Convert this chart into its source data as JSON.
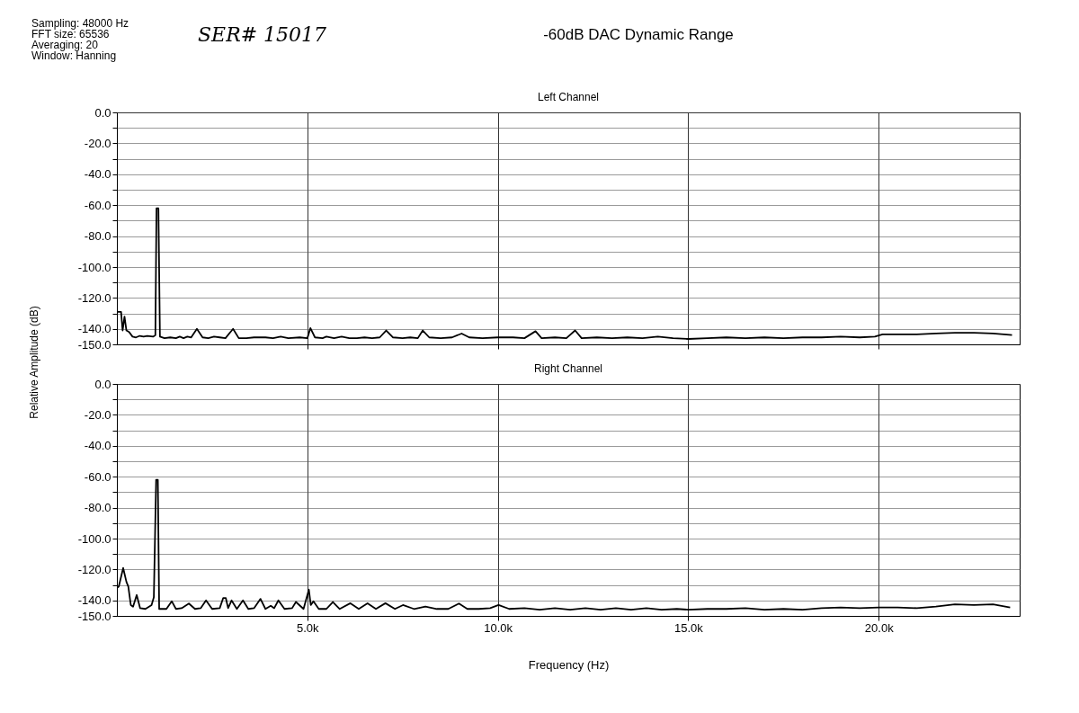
{
  "chart_data": [
    {
      "type": "line",
      "title": "Left Channel",
      "ylabel": "Relative Amplitude (dB)",
      "annotations": [
        "-60dB DAC Dynamic Range",
        "Sampling:  48000 Hz",
        "FFT size:  65536",
        "Averaging:  20",
        "Window:  Hanning",
        "SER# 15017"
      ],
      "xlim": [
        0,
        23700
      ],
      "ylim": [
        -150,
        0
      ],
      "xticks": [
        {
          "value": 5000,
          "label": null
        },
        {
          "value": 10000,
          "label": null
        },
        {
          "value": 15000,
          "label": null
        },
        {
          "value": 20000,
          "label": null
        }
      ],
      "yticks": [
        {
          "value": 0,
          "label": "0.0"
        },
        {
          "value": -10,
          "label": null
        },
        {
          "value": -20,
          "label": "-20.0"
        },
        {
          "value": -30,
          "label": null
        },
        {
          "value": -40,
          "label": "-40.0"
        },
        {
          "value": -50,
          "label": null
        },
        {
          "value": -60,
          "label": "-60.0"
        },
        {
          "value": -70,
          "label": null
        },
        {
          "value": -80,
          "label": "-80.0"
        },
        {
          "value": -90,
          "label": null
        },
        {
          "value": -100,
          "label": "-100.0"
        },
        {
          "value": -110,
          "label": null
        },
        {
          "value": -120,
          "label": "-120.0"
        },
        {
          "value": -130,
          "label": null
        },
        {
          "value": -140,
          "label": "-140.0"
        },
        {
          "value": -150,
          "label": "-150.0"
        }
      ],
      "grid": true,
      "tick_labels": "y",
      "series": [
        {
          "color": "#000000",
          "x": [
            0,
            110,
            150,
            200,
            250,
            320,
            410,
            500,
            600,
            700,
            800,
            950,
            1010,
            1040,
            1090,
            1130,
            1250,
            1400,
            1550,
            1650,
            1750,
            1850,
            1950,
            2100,
            2250,
            2400,
            2550,
            2700,
            2850,
            3050,
            3200,
            3400,
            3600,
            3900,
            4100,
            4300,
            4500,
            4800,
            5000,
            5080,
            5200,
            5400,
            5500,
            5700,
            5900,
            6100,
            6300,
            6500,
            6700,
            6900,
            7070,
            7250,
            7500,
            7700,
            7900,
            8030,
            8200,
            8500,
            8800,
            9050,
            9250,
            9600,
            10000,
            10400,
            10700,
            10990,
            11150,
            11500,
            11800,
            12030,
            12200,
            12600,
            13000,
            13400,
            13800,
            14200,
            14600,
            15000,
            15500,
            16000,
            16500,
            17000,
            17500,
            18000,
            18500,
            19000,
            19500,
            19900,
            20100,
            20500,
            21000,
            21500,
            22000,
            22500,
            23000,
            23500
          ],
          "values": [
            -129,
            -129,
            -141,
            -132,
            -141,
            -142,
            -145,
            -145.5,
            -144.5,
            -145,
            -144.5,
            -145,
            -144,
            -62,
            -62,
            -145,
            -146,
            -145.5,
            -146,
            -145,
            -146,
            -145,
            -145.5,
            -140,
            -145.5,
            -146,
            -145,
            -145.5,
            -146,
            -140,
            -146,
            -146,
            -145.5,
            -145.5,
            -146,
            -145,
            -146,
            -145.5,
            -146,
            -139.5,
            -145.5,
            -146,
            -145,
            -146,
            -145,
            -146,
            -146,
            -145.5,
            -146,
            -145.5,
            -141,
            -145.5,
            -146,
            -145.5,
            -146,
            -141,
            -145.5,
            -146,
            -145.5,
            -143,
            -145.5,
            -146,
            -145.5,
            -145.5,
            -146,
            -141.5,
            -146,
            -145.5,
            -146,
            -141,
            -146,
            -145.5,
            -146,
            -145.5,
            -146,
            -145,
            -146,
            -146.5,
            -146,
            -145.5,
            -146,
            -145.5,
            -146,
            -145.5,
            -145.5,
            -145,
            -145.5,
            -145,
            -143.5,
            -143.5,
            -143.5,
            -143,
            -142.5,
            -142.5,
            -143,
            -144
          ]
        }
      ]
    },
    {
      "type": "line",
      "title": "Right Channel",
      "xlabel": "Frequency (Hz)",
      "xlim": [
        0,
        23700
      ],
      "ylim": [
        -150,
        0
      ],
      "xticks": [
        {
          "value": 5000,
          "label": "5.0k"
        },
        {
          "value": 10000,
          "label": "10.0k"
        },
        {
          "value": 15000,
          "label": "15.0k"
        },
        {
          "value": 20000,
          "label": "20.0k"
        }
      ],
      "yticks": [
        {
          "value": 0,
          "label": "0.0"
        },
        {
          "value": -10,
          "label": null
        },
        {
          "value": -20,
          "label": "-20.0"
        },
        {
          "value": -30,
          "label": null
        },
        {
          "value": -40,
          "label": "-40.0"
        },
        {
          "value": -50,
          "label": null
        },
        {
          "value": -60,
          "label": "-60.0"
        },
        {
          "value": -70,
          "label": null
        },
        {
          "value": -80,
          "label": "-80.0"
        },
        {
          "value": -90,
          "label": null
        },
        {
          "value": -100,
          "label": "-100.0"
        },
        {
          "value": -110,
          "label": null
        },
        {
          "value": -120,
          "label": "-120.0"
        },
        {
          "value": -130,
          "label": null
        },
        {
          "value": -140,
          "label": "-140.0"
        },
        {
          "value": -150,
          "label": "-150.0"
        }
      ],
      "grid": true,
      "series": [
        {
          "color": "#000000",
          "x": [
            0,
            50,
            165,
            250,
            300,
            365,
            425,
            520,
            610,
            750,
            910,
            970,
            1030,
            1075,
            1110,
            1300,
            1440,
            1550,
            1700,
            1890,
            2050,
            2200,
            2340,
            2500,
            2700,
            2790,
            2860,
            2920,
            3010,
            3150,
            3310,
            3450,
            3600,
            3770,
            3900,
            4040,
            4130,
            4240,
            4400,
            4600,
            4700,
            4900,
            5040,
            5090,
            5160,
            5300,
            5500,
            5670,
            5850,
            6130,
            6350,
            6580,
            6800,
            7050,
            7300,
            7510,
            7800,
            8100,
            8400,
            8700,
            8980,
            9200,
            9500,
            9800,
            10020,
            10300,
            10700,
            11100,
            11500,
            11900,
            12300,
            12700,
            13100,
            13500,
            13900,
            14300,
            14700,
            15000,
            15500,
            16000,
            16500,
            17000,
            17500,
            18000,
            18500,
            19000,
            19500,
            20000,
            20500,
            21000,
            21500,
            22000,
            22500,
            23000,
            23450
          ],
          "values": [
            -132,
            -131,
            -119,
            -128,
            -131,
            -143,
            -144,
            -136.5,
            -145,
            -145.5,
            -143,
            -138,
            -62,
            -62,
            -145.5,
            -145.5,
            -140.5,
            -145.5,
            -145,
            -142,
            -145.5,
            -145,
            -140,
            -145.5,
            -145,
            -138.5,
            -138.5,
            -145,
            -140,
            -145.5,
            -140,
            -145.5,
            -145,
            -139,
            -145.5,
            -143.5,
            -145,
            -140,
            -145.5,
            -145,
            -141,
            -145.5,
            -133,
            -143,
            -140.5,
            -145.5,
            -145.5,
            -141,
            -145.5,
            -141.8,
            -145.5,
            -141.8,
            -145.5,
            -141.8,
            -145.5,
            -143,
            -145.5,
            -144,
            -145.5,
            -145.5,
            -142,
            -145.5,
            -145.5,
            -145,
            -143,
            -145.5,
            -145,
            -146,
            -145,
            -146,
            -145,
            -146,
            -145,
            -146,
            -145,
            -146,
            -145.5,
            -146,
            -145.5,
            -145.5,
            -145,
            -146,
            -145.5,
            -146,
            -145,
            -144.5,
            -145,
            -144.5,
            -144.5,
            -145,
            -144,
            -142.5,
            -143,
            -142.5,
            -144.5
          ]
        }
      ]
    }
  ]
}
